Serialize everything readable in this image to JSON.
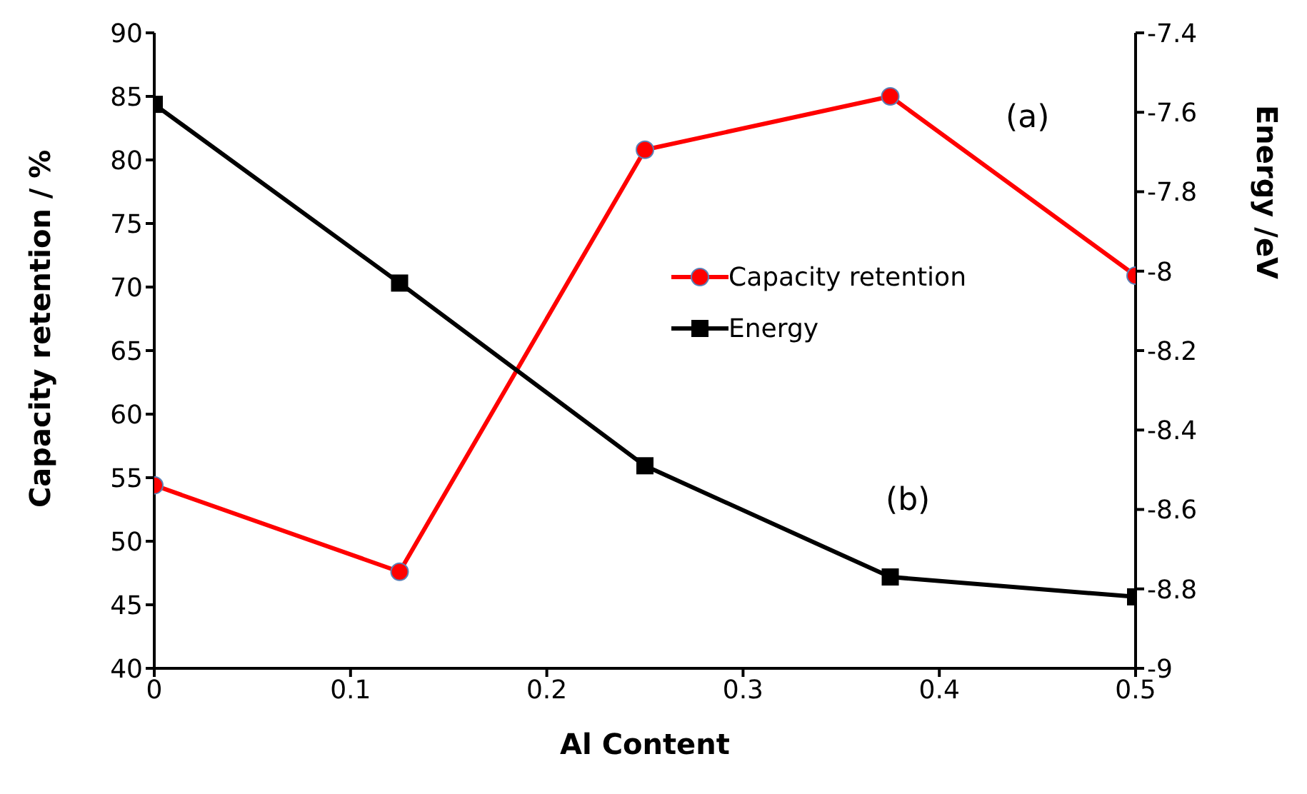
{
  "chart_data": {
    "type": "line",
    "xlabel": "Al Content",
    "ylabel": "Capacity retention / %",
    "y2label": "Energy /eV",
    "x": [
      0,
      0.125,
      0.25,
      0.375,
      0.5
    ],
    "xlim": [
      0,
      0.5
    ],
    "xticks": [
      0,
      0.1,
      0.2,
      0.3,
      0.4,
      0.5
    ],
    "ylim": [
      40,
      90
    ],
    "yticks": [
      40,
      45,
      50,
      55,
      60,
      65,
      70,
      75,
      80,
      85,
      90
    ],
    "y2lim": [
      -9,
      -7.4
    ],
    "y2ticks": [
      -9,
      -8.8,
      -8.6,
      -8.4,
      -8.2,
      -8,
      -7.8,
      -7.6,
      -7.4
    ],
    "series": [
      {
        "name": "Capacity retention",
        "color": "#ff0000",
        "marker": "circle",
        "values": [
          54.4,
          47.6,
          80.8,
          85.0,
          70.9
        ]
      },
      {
        "name": "Energy",
        "color": "#000000",
        "marker": "square",
        "axis": "y2",
        "values": [
          -7.58,
          -8.03,
          -8.49,
          -8.77,
          -8.82
        ]
      }
    ],
    "annotations": [
      "(a)",
      "(b)"
    ],
    "legend": "right",
    "grid": false
  }
}
